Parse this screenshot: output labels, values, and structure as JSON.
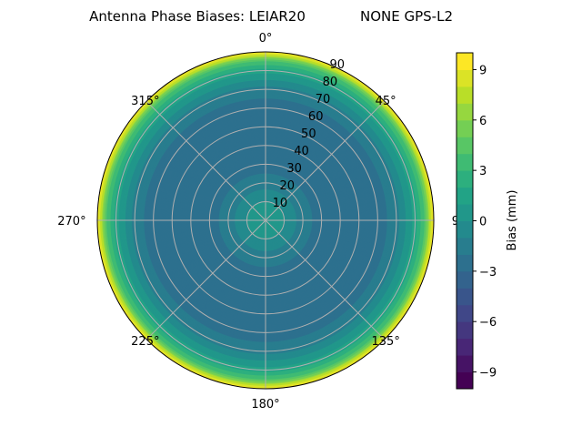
{
  "chart_data": {
    "type": "heatmap",
    "subtype": "polar-contour",
    "title_left": "Antenna Phase Biases: LEIAR20",
    "title_right": "NONE GPS-L2",
    "angle_ticks": [
      "0°",
      "45°",
      "90",
      "135°",
      "180°",
      "225°",
      "270°",
      "315°"
    ],
    "angle_tick_values": [
      0,
      45,
      90,
      135,
      180,
      225,
      270,
      315
    ],
    "radial_ticks": [
      "10",
      "20",
      "30",
      "40",
      "50",
      "60",
      "70",
      "80",
      "90"
    ],
    "radial_tick_values": [
      10,
      20,
      30,
      40,
      50,
      60,
      70,
      80,
      90
    ],
    "radial_range": [
      0,
      90
    ],
    "angle_direction": "clockwise",
    "angle_zero": "top",
    "grid": true,
    "zenith": [
      0,
      10,
      20,
      30,
      40,
      50,
      60,
      70,
      75,
      80,
      85,
      90
    ],
    "bias_mm": [
      0.5,
      0,
      -1.5,
      -2.5,
      -3,
      -3,
      -2.5,
      -1.5,
      0,
      1.5,
      4,
      9.5
    ],
    "colorbar": {
      "label": "Bias (mm)",
      "range": [
        -10,
        10
      ],
      "levels_step": 1,
      "ticks": [
        "9",
        "6",
        "3",
        "0",
        "−3",
        "−6",
        "−9"
      ],
      "tick_values": [
        9,
        6,
        3,
        0,
        -3,
        -6,
        -9
      ],
      "colormap": "viridis"
    },
    "grid_color": "#b0b0b0"
  }
}
